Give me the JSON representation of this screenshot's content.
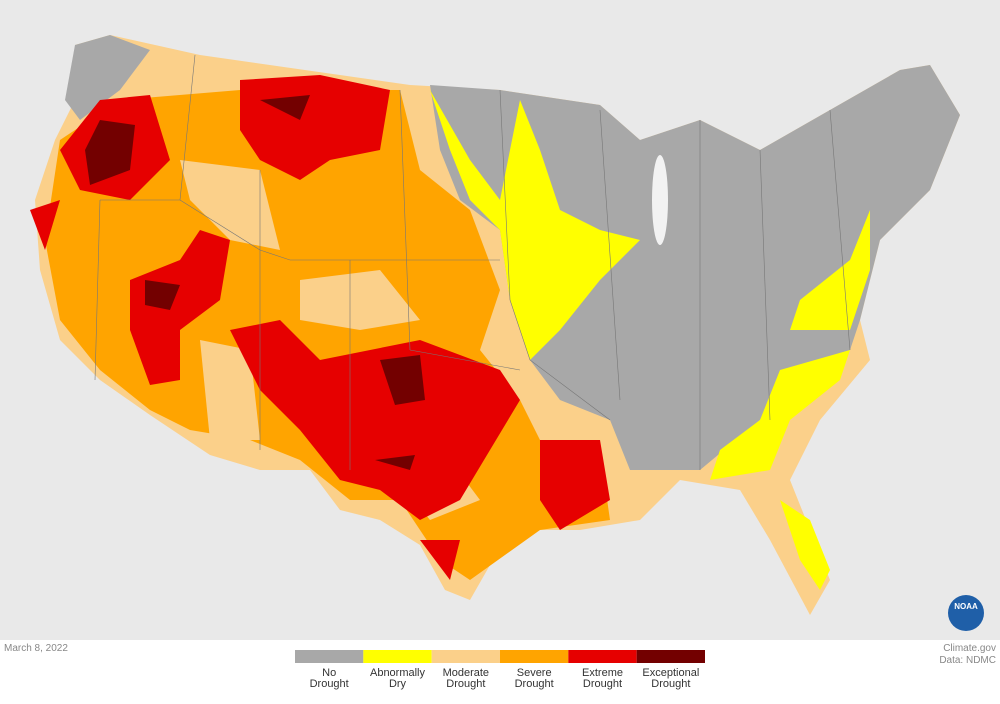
{
  "date": "March 8, 2022",
  "credit": {
    "source": "Climate.gov",
    "data": "Data: NDMC"
  },
  "logo": "NOAA",
  "legend": [
    {
      "label": [
        "No",
        "Drought"
      ],
      "color": "#a8a8a8"
    },
    {
      "label": [
        "Abnormally",
        "Dry"
      ],
      "color": "#ffff00"
    },
    {
      "label": [
        "Moderate",
        "Drought"
      ],
      "color": "#fbd08a"
    },
    {
      "label": [
        "Severe",
        "Drought"
      ],
      "color": "#ffa400"
    },
    {
      "label": [
        "Extreme",
        "Drought"
      ],
      "color": "#e60000"
    },
    {
      "label": [
        "Exceptional",
        "Drought"
      ],
      "color": "#730000"
    }
  ]
}
